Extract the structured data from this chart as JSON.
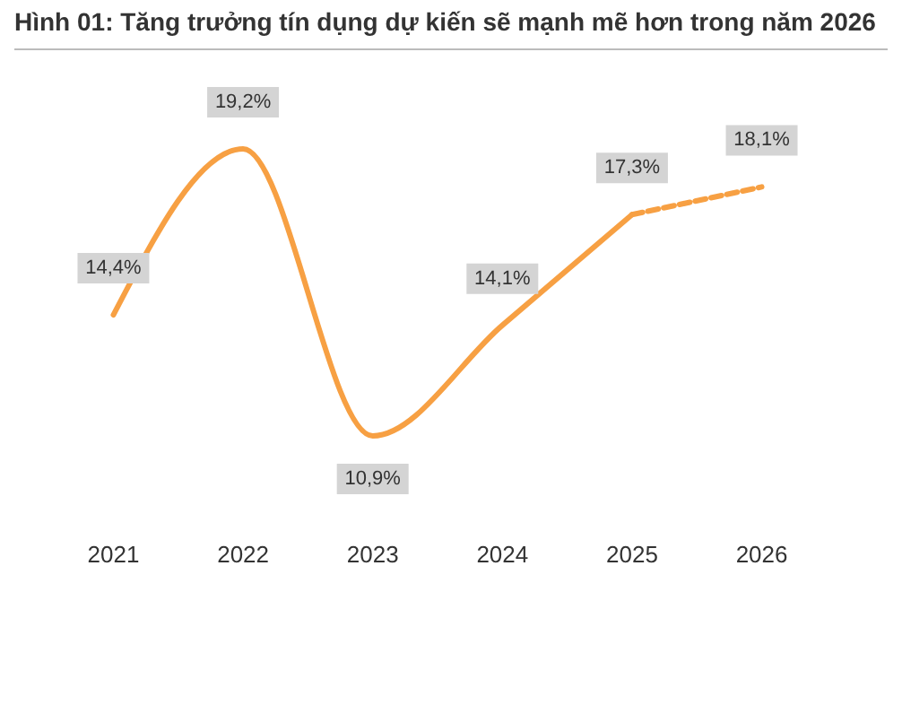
{
  "chart_data": {
    "type": "line",
    "title": "Hình 01: Tăng trưởng tín dụng dự kiến sẽ mạnh mẽ hơn trong năm 2026",
    "categories": [
      "2021",
      "2022",
      "2023",
      "2024",
      "2025",
      "2026"
    ],
    "series": [
      {
        "color": "#f7a043",
        "line_style": "solid",
        "values": [
          14.4,
          19.2,
          10.9,
          14.1,
          17.3,
          null
        ],
        "value_labels": [
          "14,4%",
          "19,2%",
          "10,9%",
          "14,1%",
          "17,3%",
          null
        ]
      },
      {
        "color": "#f7a043",
        "line_style": "dashed",
        "values": [
          null,
          null,
          null,
          null,
          17.3,
          18.1
        ],
        "value_labels": [
          null,
          null,
          null,
          null,
          null,
          "18,1%"
        ]
      }
    ],
    "grid": false,
    "marker": "none"
  }
}
